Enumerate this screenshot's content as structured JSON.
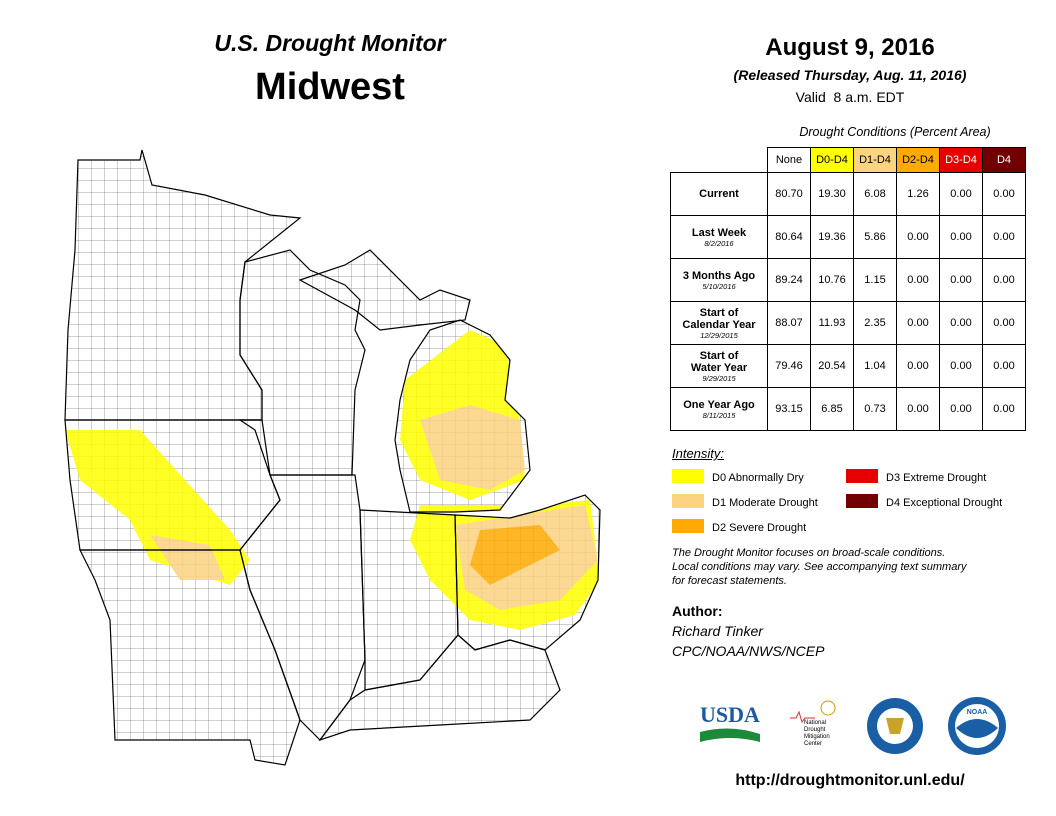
{
  "header": {
    "subtitle": "U.S. Drought Monitor",
    "title": "Midwest"
  },
  "date": {
    "title": "August 9, 2016",
    "released": "(Released Thursday, Aug. 11, 2016)",
    "valid": "Valid  8 a.m. EDT"
  },
  "table": {
    "caption": "Drought Conditions (Percent Area)",
    "columns": [
      "None",
      "D0-D4",
      "D1-D4",
      "D2-D4",
      "D3-D4",
      "D4"
    ],
    "column_colors": [
      "#ffffff",
      "#ffff00",
      "#fcd37f",
      "#ffaa00",
      "#e60000",
      "#730000"
    ],
    "column_text_colors": [
      "#000000",
      "#000000",
      "#000000",
      "#000000",
      "#ffffff",
      "#ffffff"
    ],
    "rows": [
      {
        "label": [
          "Current"
        ],
        "values": [
          "80.70",
          "19.30",
          "6.08",
          "1.26",
          "0.00",
          "0.00"
        ]
      },
      {
        "label": [
          "Last Week"
        ],
        "date": "8/2/2016",
        "values": [
          "80.64",
          "19.36",
          "5.86",
          "0.00",
          "0.00",
          "0.00"
        ]
      },
      {
        "label": [
          "3 Months Ago"
        ],
        "date": "5/10/2016",
        "values": [
          "89.24",
          "10.76",
          "1.15",
          "0.00",
          "0.00",
          "0.00"
        ]
      },
      {
        "label": [
          "Start of",
          "Calendar Year"
        ],
        "date": "12/29/2015",
        "values": [
          "88.07",
          "11.93",
          "2.35",
          "0.00",
          "0.00",
          "0.00"
        ]
      },
      {
        "label": [
          "Start of",
          "Water Year"
        ],
        "date": "9/29/2015",
        "values": [
          "79.46",
          "20.54",
          "1.04",
          "0.00",
          "0.00",
          "0.00"
        ]
      },
      {
        "label": [
          "One Year Ago"
        ],
        "date": "8/11/2015",
        "values": [
          "93.15",
          "6.85",
          "0.73",
          "0.00",
          "0.00",
          "0.00"
        ]
      }
    ]
  },
  "legend": {
    "title": "Intensity:",
    "items": [
      {
        "label": "D0 Abnormally Dry",
        "color": "#ffff00"
      },
      {
        "label": "D1 Moderate Drought",
        "color": "#fcd37f"
      },
      {
        "label": "D2 Severe Drought",
        "color": "#ffaa00"
      },
      {
        "label": "D3 Extreme Drought",
        "color": "#e60000"
      },
      {
        "label": "D4 Exceptional Drought",
        "color": "#730000"
      }
    ]
  },
  "note": [
    "The Drought Monitor focuses on broad-scale conditions.",
    "Local conditions may vary. See accompanying text summary",
    "for forecast statements."
  ],
  "author": {
    "label": "Author:",
    "name": "Richard Tinker",
    "org": "CPC/NOAA/NWS/NCEP"
  },
  "logos": {
    "usda": "USDA",
    "ndmc": [
      "National",
      "Drought",
      "Mitigation",
      "Center"
    ],
    "noaa": "NOAA"
  },
  "url": "http://droughtmonitor.unl.edu/"
}
